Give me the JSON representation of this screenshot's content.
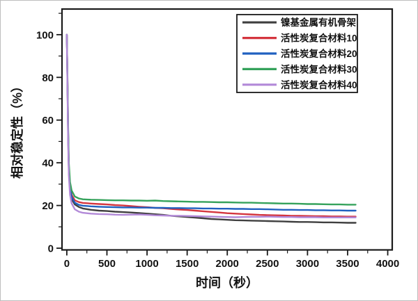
{
  "figure": {
    "background": "#ffffff",
    "frame_border": "#bdbdbd",
    "axis_color": "#1a1a1a"
  },
  "chart_data": {
    "type": "line",
    "title": "",
    "xlabel": "时间（秒）",
    "ylabel": "相对稳定性（%）",
    "xlim": [
      -60,
      4056
    ],
    "ylim": [
      -0.8,
      112
    ],
    "x_ticks": [
      0,
      500,
      1000,
      1500,
      2000,
      2500,
      3000,
      3500,
      4000
    ],
    "x_minor_ticks": [
      250,
      750,
      1250,
      1750,
      2250,
      2750,
      3250,
      3750
    ],
    "y_ticks": [
      0,
      20,
      40,
      60,
      80,
      100
    ],
    "y_minor_ticks": [
      10,
      30,
      50,
      70,
      90,
      110
    ],
    "grid": false,
    "legend_position": "top-right",
    "x": [
      0,
      8,
      16,
      25,
      40,
      60,
      100,
      150,
      200,
      300,
      400,
      500,
      600,
      700,
      800,
      900,
      1000,
      1100,
      1200,
      1300,
      1400,
      1500,
      1600,
      1700,
      1800,
      1900,
      2000,
      2100,
      2200,
      2300,
      2400,
      2500,
      2600,
      2700,
      2800,
      2900,
      3000,
      3100,
      3200,
      3300,
      3400,
      3500,
      3600
    ],
    "series": [
      {
        "name": "镍基金属有机骨架",
        "color": "#3f3f3f",
        "values": [
          100,
          78,
          52,
          36,
          27,
          23,
          20.5,
          19.3,
          18.6,
          18.0,
          17.6,
          17.4,
          17.1,
          16.9,
          16.7,
          16.5,
          16.2,
          15.9,
          15.6,
          15.2,
          14.9,
          14.6,
          14.3,
          14.0,
          13.7,
          13.5,
          13.3,
          13.1,
          13.0,
          12.9,
          12.8,
          12.7,
          12.6,
          12.5,
          12.4,
          12.3,
          12.3,
          12.2,
          12.1,
          12.1,
          12.0,
          11.9,
          11.9
        ]
      },
      {
        "name": "活性炭复合材料10",
        "color": "#d4353e",
        "values": [
          100,
          80,
          55,
          38,
          29,
          25,
          22.4,
          21.6,
          21.2,
          20.9,
          20.7,
          20.5,
          20.2,
          20.0,
          19.7,
          19.4,
          19.2,
          18.9,
          18.7,
          18.4,
          18.1,
          17.9,
          17.6,
          17.3,
          17.0,
          16.7,
          16.4,
          16.2,
          16.0,
          15.8,
          15.6,
          15.5,
          15.4,
          15.3,
          15.2,
          15.2,
          15.1,
          15.0,
          15.0,
          14.9,
          14.9,
          14.8,
          14.8
        ]
      },
      {
        "name": "活性炭复合材料20",
        "color": "#2060c0",
        "values": [
          100,
          79,
          54,
          37,
          28,
          24,
          21.3,
          20.3,
          19.9,
          19.6,
          19.4,
          19.3,
          19.2,
          19.1,
          19.1,
          19.0,
          19.0,
          18.9,
          18.9,
          18.8,
          18.8,
          18.7,
          18.7,
          18.6,
          18.6,
          18.5,
          18.5,
          18.4,
          18.4,
          18.3,
          18.3,
          18.2,
          18.1,
          18.0,
          18.0,
          17.9,
          17.9,
          17.8,
          17.8,
          17.7,
          17.7,
          17.6,
          17.6
        ]
      },
      {
        "name": "活性炭复合材料30",
        "color": "#35a25b",
        "values": [
          100,
          81,
          57,
          40,
          31,
          27,
          24.2,
          23.3,
          22.9,
          22.7,
          22.6,
          22.5,
          22.4,
          22.4,
          22.3,
          22.3,
          22.2,
          22.3,
          22.1,
          22.0,
          21.9,
          21.8,
          21.7,
          21.7,
          21.6,
          21.5,
          21.5,
          21.4,
          21.3,
          21.3,
          21.2,
          21.1,
          21.0,
          20.9,
          20.9,
          20.8,
          20.7,
          20.7,
          20.6,
          20.5,
          20.5,
          20.4,
          20.4
        ]
      },
      {
        "name": "活性炭复合材料40",
        "color": "#b289d8",
        "values": [
          100,
          77,
          50,
          34,
          25,
          21,
          18.2,
          17.1,
          16.6,
          16.2,
          16.0,
          15.9,
          15.7,
          15.6,
          15.7,
          15.8,
          15.6,
          15.4,
          15.3,
          15.2,
          15.2,
          15.1,
          15.0,
          14.9,
          14.8,
          14.7,
          14.6,
          14.5,
          14.6,
          14.7,
          14.7,
          14.8,
          14.7,
          14.6,
          14.6,
          14.5,
          14.5,
          14.5,
          14.4,
          14.4,
          14.4,
          14.4,
          14.4
        ]
      }
    ]
  }
}
